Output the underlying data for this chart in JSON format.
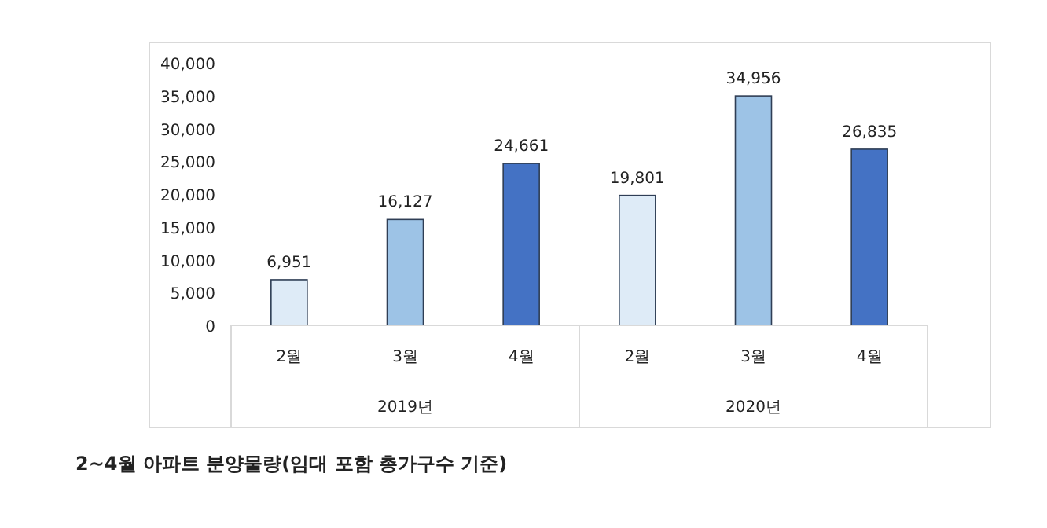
{
  "chart_data": {
    "type": "bar",
    "title": "2~4월 아파트 분양물량(임대 포함 총가구수 기준)",
    "categories": [
      "2월",
      "3월",
      "4월",
      "2월",
      "3월",
      "4월"
    ],
    "values": [
      6951,
      16127,
      24661,
      19801,
      34956,
      26835
    ],
    "value_labels": [
      "6,951",
      "16,127",
      "24,661",
      "19,801",
      "34,956",
      "26,835"
    ],
    "colors": [
      "#deebf7",
      "#9dc3e6",
      "#4472c4",
      "#deebf7",
      "#9dc3e6",
      "#4472c4"
    ],
    "ylim": [
      0,
      40000
    ],
    "yticks": [
      0,
      {
        "value": 5000,
        "label": "5,000"
      },
      {
        "value": 10000,
        "label": "10,000"
      },
      {
        "value": 15000,
        "label": "15,000"
      },
      {
        "value": 20000,
        "label": "20,000"
      },
      {
        "value": 25000,
        "label": "25,000"
      },
      {
        "value": 30000,
        "label": "30,000"
      },
      {
        "value": 35000,
        "label": "35,000"
      },
      {
        "value": 40000,
        "label": "40,000"
      }
    ],
    "grid": false,
    "annotations": [
      "2019년",
      "2020년"
    ]
  }
}
